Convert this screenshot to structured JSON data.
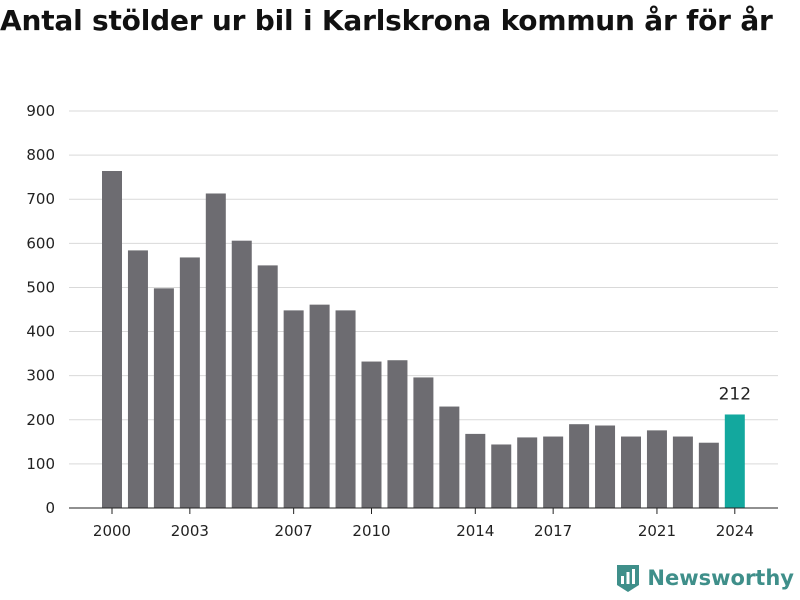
{
  "title": "Antal stölder ur bil i Karlskrona kommun år för år",
  "brand": {
    "name": "Newsworthy",
    "logo_icon": "bar-chart-shield-icon"
  },
  "colors": {
    "bar": "#6d6c71",
    "highlight": "#13a89e",
    "grid": "#d9d9d9",
    "brand": "#3f8f8a"
  },
  "chart_data": {
    "type": "bar",
    "title": "Antal stölder ur bil i Karlskrona kommun år för år",
    "xlabel": "",
    "ylabel": "",
    "ylim": [
      0,
      900
    ],
    "yticks": [
      0,
      100,
      200,
      300,
      400,
      500,
      600,
      700,
      800,
      900
    ],
    "xticks": [
      2000,
      2003,
      2007,
      2010,
      2014,
      2017,
      2021,
      2024
    ],
    "categories": [
      2000,
      2001,
      2002,
      2003,
      2004,
      2005,
      2006,
      2007,
      2008,
      2009,
      2010,
      2011,
      2012,
      2013,
      2014,
      2015,
      2016,
      2017,
      2018,
      2019,
      2020,
      2021,
      2022,
      2023,
      2024
    ],
    "values": [
      764,
      584,
      498,
      568,
      713,
      606,
      550,
      448,
      461,
      448,
      332,
      335,
      296,
      230,
      168,
      144,
      160,
      162,
      190,
      187,
      162,
      176,
      162,
      148,
      212
    ],
    "highlight": {
      "category": 2024,
      "label": "212"
    },
    "grid": true,
    "legend": "none"
  }
}
